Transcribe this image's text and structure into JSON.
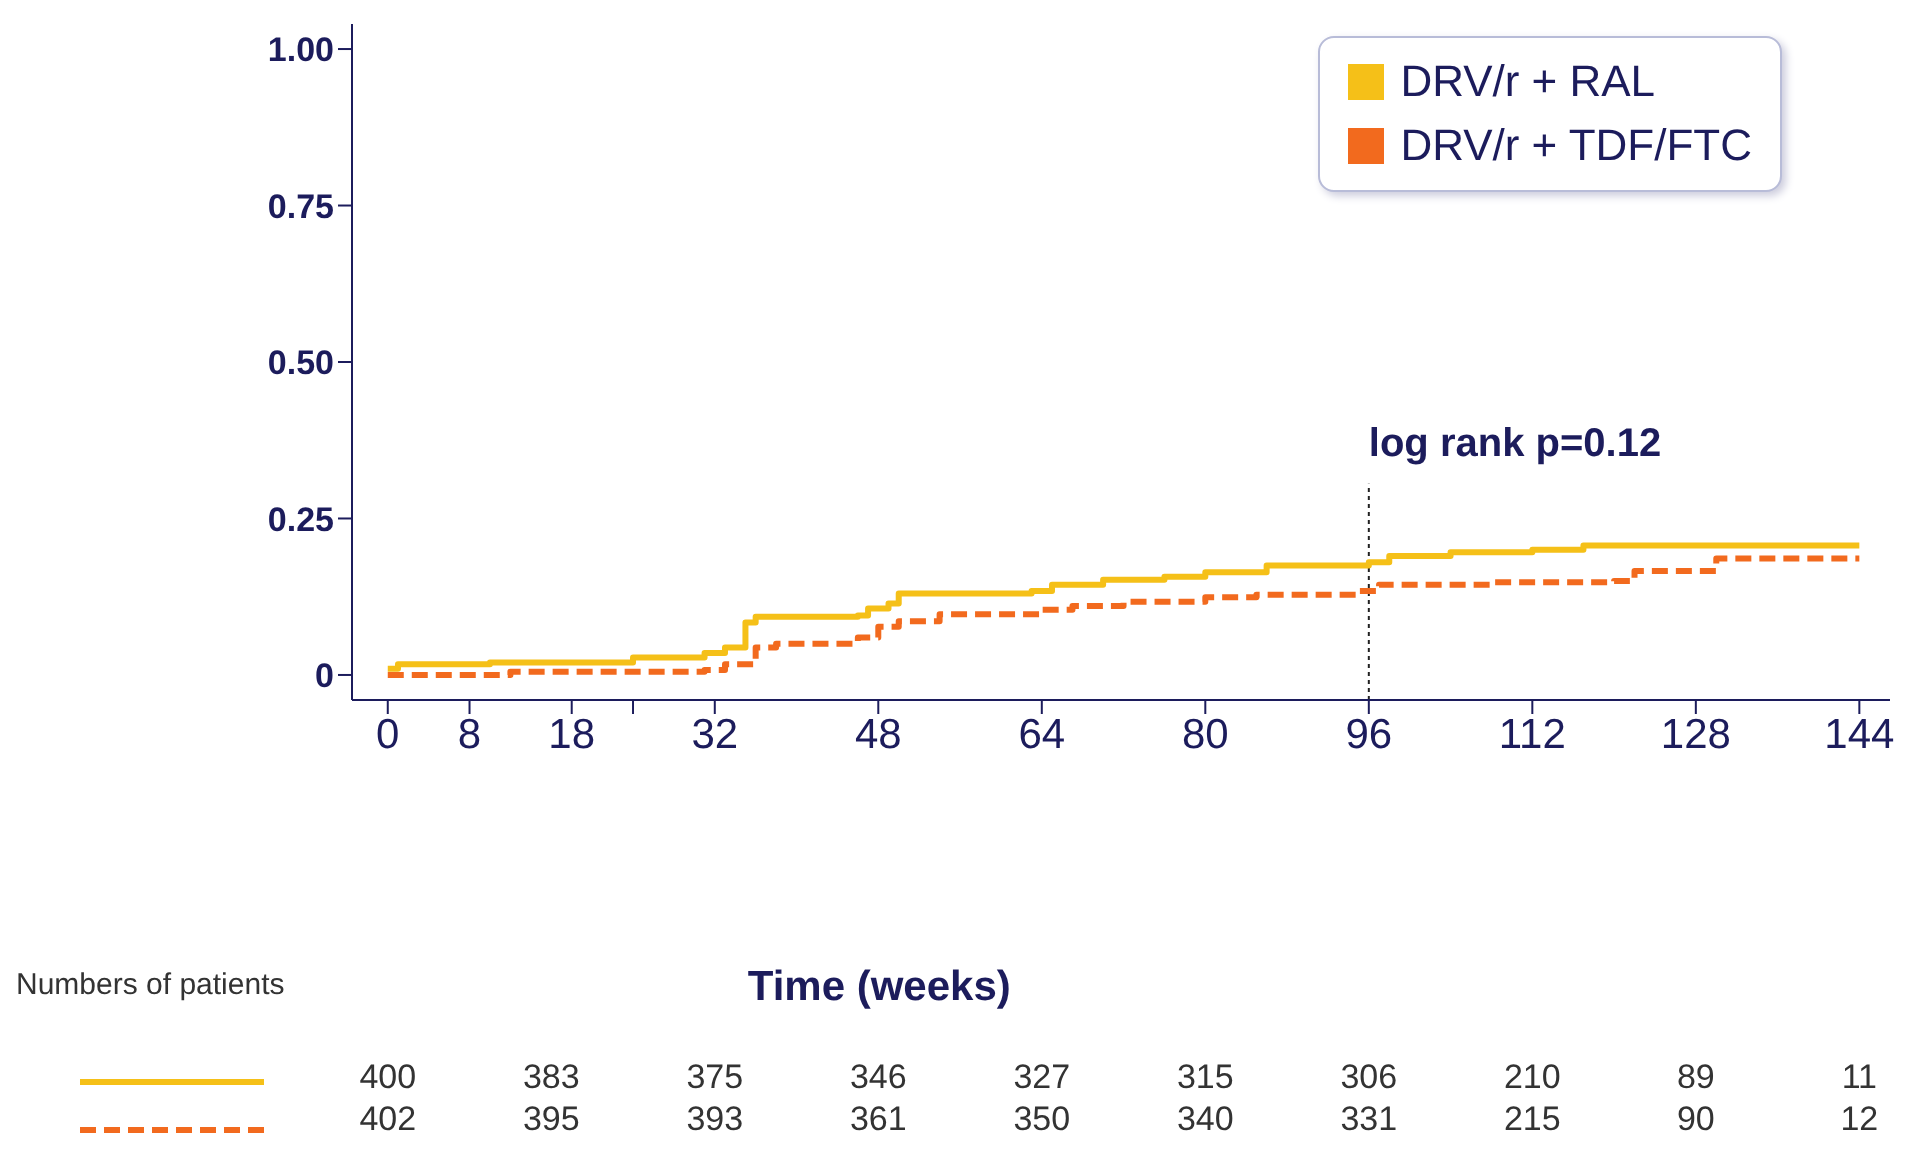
{
  "chart_data": {
    "type": "step",
    "xlabel": "Time (weeks)",
    "xlim": [
      -3.5,
      147
    ],
    "xticks": [
      0,
      8,
      18,
      {
        "value": 24,
        "label": null
      },
      32,
      48,
      64,
      80,
      96,
      112,
      128,
      144
    ],
    "ylim": [
      -0.04,
      1.04
    ],
    "yticks": [
      0,
      {
        "value": 0.25,
        "label": "0.25"
      },
      {
        "value": 0.5,
        "label": "0.50"
      },
      {
        "value": 0.75,
        "label": "0.75"
      },
      {
        "value": 1,
        "label": "1.00"
      }
    ],
    "grid": false,
    "legend": "top right",
    "marker": "none",
    "series": [
      {
        "name": "DRV/r + RAL",
        "color": "#f5c018",
        "line_style": "solid",
        "x": [
          0,
          1,
          10,
          24,
          31,
          33,
          35,
          36,
          46,
          47,
          49,
          50,
          63,
          65,
          70,
          76,
          80,
          86,
          96,
          98,
          104,
          112,
          117,
          144
        ],
        "values": [
          0.01,
          0.017,
          0.02,
          0.028,
          0.035,
          0.044,
          0.084,
          0.093,
          0.095,
          0.106,
          0.114,
          0.13,
          0.134,
          0.144,
          0.152,
          0.157,
          0.164,
          0.175,
          0.18,
          0.19,
          0.196,
          0.2,
          0.207,
          0.207
        ]
      },
      {
        "name": "DRV/r + TDF/FTC",
        "color": "#f26a1e",
        "line_style": "dashed",
        "x": [
          0,
          12,
          31,
          33,
          36,
          38,
          46,
          48,
          50,
          54,
          64,
          67,
          72,
          80,
          85,
          95,
          97,
          108,
          120,
          122,
          130,
          144
        ],
        "values": [
          0,
          0.005,
          0.008,
          0.017,
          0.044,
          0.05,
          0.06,
          0.077,
          0.086,
          0.097,
          0.104,
          0.11,
          0.117,
          0.124,
          0.128,
          0.134,
          0.144,
          0.148,
          0.15,
          0.166,
          0.186,
          0.186
        ]
      }
    ],
    "ref_lines": [
      {
        "axis": "x",
        "value": 96,
        "color": "#222222",
        "line_style": "dotted"
      }
    ],
    "annotations": [
      "log rank p=0.12",
      "Numbers of patients",
      "400",
      "383",
      "375",
      "346",
      "327",
      "315",
      "306",
      "210",
      "89",
      "11",
      "402",
      "395",
      "393",
      "361",
      "350",
      "340",
      "331",
      "215",
      "90",
      "12"
    ]
  }
}
